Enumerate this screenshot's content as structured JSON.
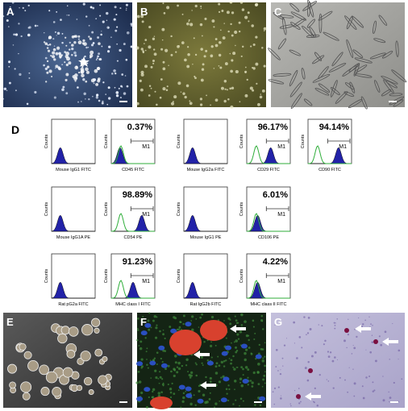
{
  "panels_top": [
    "A",
    "B",
    "C"
  ],
  "flow": {
    "label": "D",
    "counts_label": "Counts",
    "marker_label": "M1",
    "rows": [
      [
        {
          "x_label": "Mouse IgG1 FITC"
        },
        {
          "x_label": "CD45 FITC",
          "percent": "0.37%"
        },
        {
          "x_label": "Mouse IgG2a FITC"
        },
        {
          "x_label": "CD29 FITC",
          "percent": "96.17%"
        },
        {
          "x_label": "CD90 FITC",
          "percent": "94.14%"
        }
      ],
      [
        {
          "x_label": "Mouse IgG1A PE"
        },
        {
          "x_label": "CD54 PE",
          "percent": "98.89%"
        },
        {
          "x_label": "Mouse IgG1 PE"
        },
        {
          "x_label": "CD106 PE",
          "percent": "6.01%"
        }
      ],
      [
        {
          "x_label": "Rat pG2a FITC"
        },
        {
          "x_label": "MHC class I FITC",
          "percent": "91.23%"
        },
        {
          "x_label": "Rat IgG2b FITC"
        },
        {
          "x_label": "MHC class II FITC",
          "percent": "4.22%"
        }
      ]
    ]
  },
  "panels_bottom": [
    "E",
    "F",
    "G"
  ]
}
